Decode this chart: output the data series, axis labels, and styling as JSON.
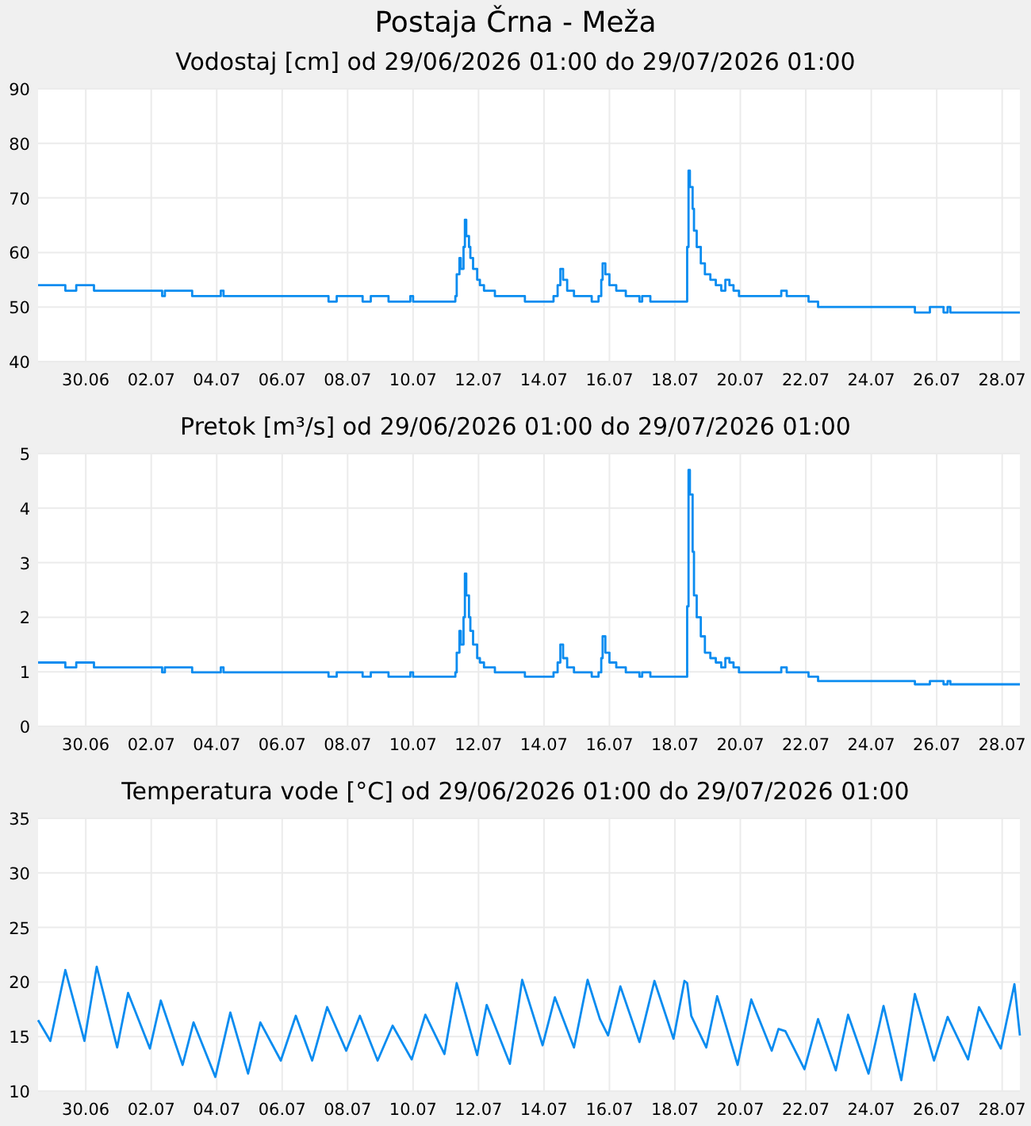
{
  "chart_data": [
    {
      "type": "step",
      "title": "Postaja Črna - Meža",
      "subtitle": "Vodostaj [cm] od 29/06/2026 01:00 do 29/07/2026 01:00",
      "grid": true,
      "xlim": [
        "2026-06-29T01:00",
        "2026-07-29T01:00"
      ],
      "ylim": [
        40,
        90
      ],
      "yticks": [
        40,
        50,
        60,
        70,
        80,
        90
      ],
      "xticks": [
        {
          "value": "2026-06-30T12:00",
          "label": "30.06"
        },
        {
          "value": "2026-07-02T12:00",
          "label": "02.07"
        },
        {
          "value": "2026-07-04T12:00",
          "label": "04.07"
        },
        {
          "value": "2026-07-06T12:00",
          "label": "06.07"
        },
        {
          "value": "2026-07-08T12:00",
          "label": "08.07"
        },
        {
          "value": "2026-07-10T12:00",
          "label": "10.07"
        },
        {
          "value": "2026-07-12T12:00",
          "label": "12.07"
        },
        {
          "value": "2026-07-14T12:00",
          "label": "14.07"
        },
        {
          "value": "2026-07-16T12:00",
          "label": "16.07"
        },
        {
          "value": "2026-07-18T12:00",
          "label": "18.07"
        },
        {
          "value": "2026-07-20T12:00",
          "label": "20.07"
        },
        {
          "value": "2026-07-22T12:00",
          "label": "22.07"
        },
        {
          "value": "2026-07-24T12:00",
          "label": "24.07"
        },
        {
          "value": "2026-07-26T12:00",
          "label": "26.07"
        },
        {
          "value": "2026-07-28T12:00",
          "label": "28.07"
        }
      ],
      "x": [
        "2026-06-29T01:00",
        "2026-06-29T21:00",
        "2026-06-30T05:00",
        "2026-06-30T18:00",
        "2026-07-02T20:00",
        "2026-07-02T22:00",
        "2026-07-03T18:00",
        "2026-07-04T15:00",
        "2026-07-04T17:00",
        "2026-07-07T22:00",
        "2026-07-08T04:00",
        "2026-07-08T23:00",
        "2026-07-09T05:00",
        "2026-07-09T18:00",
        "2026-07-10T10:00",
        "2026-07-10T12:00",
        "2026-07-11T19:00",
        "2026-07-11T20:00",
        "2026-07-11T22:00",
        "2026-07-11T23:00",
        "2026-07-12T01:00",
        "2026-07-12T02:00",
        "2026-07-12T03:00",
        "2026-07-12T05:00",
        "2026-07-12T06:00",
        "2026-07-12T08:00",
        "2026-07-12T11:00",
        "2026-07-12T13:00",
        "2026-07-12T16:00",
        "2026-07-13T00:00",
        "2026-07-13T22:00",
        "2026-07-14T19:00",
        "2026-07-14T22:00",
        "2026-07-15T00:00",
        "2026-07-15T02:00",
        "2026-07-15T05:00",
        "2026-07-15T10:00",
        "2026-07-15T23:00",
        "2026-07-16T04:00",
        "2026-07-16T06:00",
        "2026-07-16T07:00",
        "2026-07-16T09:00",
        "2026-07-16T12:00",
        "2026-07-16T17:00",
        "2026-07-17T00:00",
        "2026-07-17T10:00",
        "2026-07-17T12:00",
        "2026-07-17T18:00",
        "2026-07-18T21:00",
        "2026-07-18T22:00",
        "2026-07-18T23:00",
        "2026-07-19T01:00",
        "2026-07-19T02:00",
        "2026-07-19T04:00",
        "2026-07-19T07:00",
        "2026-07-19T10:00",
        "2026-07-19T14:00",
        "2026-07-19T18:00",
        "2026-07-19T22:00",
        "2026-07-20T01:00",
        "2026-07-20T04:00",
        "2026-07-20T07:00",
        "2026-07-20T11:00",
        "2026-07-21T18:00",
        "2026-07-21T22:00",
        "2026-07-22T14:00",
        "2026-07-22T21:00",
        "2026-07-25T20:00",
        "2026-07-26T07:00",
        "2026-07-26T17:00",
        "2026-07-26T20:00",
        "2026-07-26T22:00",
        "2026-07-29T01:00"
      ],
      "series": [
        {
          "color": "#0a8cf0",
          "values": [
            54,
            53,
            54,
            53,
            52,
            53,
            52,
            53,
            52,
            51,
            52,
            51,
            52,
            51,
            52,
            51,
            52,
            56,
            59,
            57,
            61,
            66,
            63,
            61,
            59,
            57,
            55,
            54,
            53,
            52,
            51,
            52,
            54,
            57,
            55,
            53,
            52,
            51,
            52,
            55,
            58,
            56,
            54,
            53,
            52,
            51,
            52,
            51,
            61,
            75,
            72,
            68,
            64,
            61,
            58,
            56,
            55,
            54,
            53,
            55,
            54,
            53,
            52,
            53,
            52,
            51,
            50,
            49,
            50,
            49,
            50,
            49,
            49
          ]
        }
      ]
    },
    {
      "type": "step",
      "title": "Pretok [m³/s] od 29/06/2026 01:00 do 29/07/2026 01:00",
      "grid": true,
      "xlim": [
        "2026-06-29T01:00",
        "2026-07-29T01:00"
      ],
      "ylim": [
        0,
        5
      ],
      "yticks": [
        0,
        1,
        2,
        3,
        4,
        5
      ],
      "xticks": [
        {
          "value": "2026-06-30T12:00",
          "label": "30.06"
        },
        {
          "value": "2026-07-02T12:00",
          "label": "02.07"
        },
        {
          "value": "2026-07-04T12:00",
          "label": "04.07"
        },
        {
          "value": "2026-07-06T12:00",
          "label": "06.07"
        },
        {
          "value": "2026-07-08T12:00",
          "label": "08.07"
        },
        {
          "value": "2026-07-10T12:00",
          "label": "10.07"
        },
        {
          "value": "2026-07-12T12:00",
          "label": "12.07"
        },
        {
          "value": "2026-07-14T12:00",
          "label": "14.07"
        },
        {
          "value": "2026-07-16T12:00",
          "label": "16.07"
        },
        {
          "value": "2026-07-18T12:00",
          "label": "18.07"
        },
        {
          "value": "2026-07-20T12:00",
          "label": "20.07"
        },
        {
          "value": "2026-07-22T12:00",
          "label": "22.07"
        },
        {
          "value": "2026-07-24T12:00",
          "label": "24.07"
        },
        {
          "value": "2026-07-26T12:00",
          "label": "26.07"
        },
        {
          "value": "2026-07-28T12:00",
          "label": "28.07"
        }
      ],
      "x": [
        "2026-06-29T01:00",
        "2026-06-29T21:00",
        "2026-06-30T05:00",
        "2026-06-30T18:00",
        "2026-07-02T20:00",
        "2026-07-02T22:00",
        "2026-07-03T18:00",
        "2026-07-04T15:00",
        "2026-07-04T17:00",
        "2026-07-07T22:00",
        "2026-07-08T04:00",
        "2026-07-08T23:00",
        "2026-07-09T05:00",
        "2026-07-09T18:00",
        "2026-07-10T10:00",
        "2026-07-10T12:00",
        "2026-07-11T19:00",
        "2026-07-11T20:00",
        "2026-07-11T22:00",
        "2026-07-11T23:00",
        "2026-07-12T01:00",
        "2026-07-12T02:00",
        "2026-07-12T03:00",
        "2026-07-12T05:00",
        "2026-07-12T06:00",
        "2026-07-12T08:00",
        "2026-07-12T11:00",
        "2026-07-12T13:00",
        "2026-07-12T16:00",
        "2026-07-13T00:00",
        "2026-07-13T22:00",
        "2026-07-14T19:00",
        "2026-07-14T22:00",
        "2026-07-15T00:00",
        "2026-07-15T02:00",
        "2026-07-15T05:00",
        "2026-07-15T10:00",
        "2026-07-15T23:00",
        "2026-07-16T04:00",
        "2026-07-16T06:00",
        "2026-07-16T07:00",
        "2026-07-16T09:00",
        "2026-07-16T12:00",
        "2026-07-16T17:00",
        "2026-07-17T00:00",
        "2026-07-17T10:00",
        "2026-07-17T12:00",
        "2026-07-17T18:00",
        "2026-07-18T21:00",
        "2026-07-18T22:00",
        "2026-07-18T23:00",
        "2026-07-19T01:00",
        "2026-07-19T02:00",
        "2026-07-19T04:00",
        "2026-07-19T07:00",
        "2026-07-19T10:00",
        "2026-07-19T14:00",
        "2026-07-19T18:00",
        "2026-07-19T22:00",
        "2026-07-20T01:00",
        "2026-07-20T04:00",
        "2026-07-20T07:00",
        "2026-07-20T11:00",
        "2026-07-21T18:00",
        "2026-07-21T22:00",
        "2026-07-22T14:00",
        "2026-07-22T21:00",
        "2026-07-25T20:00",
        "2026-07-26T07:00",
        "2026-07-26T17:00",
        "2026-07-26T20:00",
        "2026-07-26T22:00",
        "2026-07-29T01:00"
      ],
      "series": [
        {
          "color": "#0a8cf0",
          "values": [
            1.17,
            1.08,
            1.17,
            1.08,
            0.99,
            1.08,
            0.99,
            1.08,
            0.99,
            0.91,
            0.99,
            0.91,
            0.99,
            0.91,
            0.99,
            0.91,
            0.99,
            1.35,
            1.75,
            1.5,
            2.0,
            2.8,
            2.4,
            2.0,
            1.75,
            1.5,
            1.25,
            1.17,
            1.08,
            0.99,
            0.91,
            0.99,
            1.17,
            1.5,
            1.25,
            1.08,
            0.99,
            0.91,
            0.99,
            1.25,
            1.65,
            1.35,
            1.17,
            1.08,
            0.99,
            0.91,
            0.99,
            0.91,
            2.2,
            4.7,
            4.25,
            3.2,
            2.4,
            2.0,
            1.65,
            1.35,
            1.25,
            1.17,
            1.08,
            1.25,
            1.17,
            1.08,
            0.99,
            1.08,
            0.99,
            0.91,
            0.83,
            0.77,
            0.83,
            0.77,
            0.83,
            0.77,
            0.77
          ]
        }
      ]
    },
    {
      "type": "line",
      "title": "Temperatura vode [°C] od 29/06/2026 01:00 do 29/07/2026 01:00",
      "grid": true,
      "xlim": [
        "2026-06-29T01:00",
        "2026-07-29T01:00"
      ],
      "ylim": [
        10,
        35
      ],
      "yticks": [
        10,
        15,
        20,
        25,
        30,
        35
      ],
      "xticks": [
        {
          "value": "2026-06-30T12:00",
          "label": "30.06"
        },
        {
          "value": "2026-07-02T12:00",
          "label": "02.07"
        },
        {
          "value": "2026-07-04T12:00",
          "label": "04.07"
        },
        {
          "value": "2026-07-06T12:00",
          "label": "06.07"
        },
        {
          "value": "2026-07-08T12:00",
          "label": "08.07"
        },
        {
          "value": "2026-07-10T12:00",
          "label": "10.07"
        },
        {
          "value": "2026-07-12T12:00",
          "label": "12.07"
        },
        {
          "value": "2026-07-14T12:00",
          "label": "14.07"
        },
        {
          "value": "2026-07-16T12:00",
          "label": "16.07"
        },
        {
          "value": "2026-07-18T12:00",
          "label": "18.07"
        },
        {
          "value": "2026-07-20T12:00",
          "label": "20.07"
        },
        {
          "value": "2026-07-22T12:00",
          "label": "22.07"
        },
        {
          "value": "2026-07-24T12:00",
          "label": "24.07"
        },
        {
          "value": "2026-07-26T12:00",
          "label": "26.07"
        },
        {
          "value": "2026-07-28T12:00",
          "label": "28.07"
        }
      ],
      "x": [
        "2026-06-29T01:00",
        "2026-06-29T10:00",
        "2026-06-29T21:00",
        "2026-06-30T11:00",
        "2026-06-30T20:00",
        "2026-07-01T11:00",
        "2026-07-01T19:00",
        "2026-07-02T11:00",
        "2026-07-02T19:00",
        "2026-07-03T11:00",
        "2026-07-03T19:00",
        "2026-07-04T11:00",
        "2026-07-04T22:00",
        "2026-07-05T11:00",
        "2026-07-05T20:00",
        "2026-07-06T11:00",
        "2026-07-06T22:00",
        "2026-07-07T10:00",
        "2026-07-07T21:00",
        "2026-07-08T11:00",
        "2026-07-08T21:00",
        "2026-07-09T10:00",
        "2026-07-09T21:00",
        "2026-07-10T11:00",
        "2026-07-10T21:00",
        "2026-07-11T11:00",
        "2026-07-11T20:00",
        "2026-07-12T11:00",
        "2026-07-12T18:00",
        "2026-07-13T11:00",
        "2026-07-13T20:00",
        "2026-07-14T11:00",
        "2026-07-14T20:00",
        "2026-07-15T10:00",
        "2026-07-15T20:00",
        "2026-07-16T05:00",
        "2026-07-16T11:00",
        "2026-07-16T20:00",
        "2026-07-17T10:00",
        "2026-07-17T21:00",
        "2026-07-18T11:00",
        "2026-07-18T19:00",
        "2026-07-18T21:00",
        "2026-07-19T00:00",
        "2026-07-19T11:00",
        "2026-07-19T19:00",
        "2026-07-20T10:00",
        "2026-07-20T20:00",
        "2026-07-21T11:00",
        "2026-07-21T16:00",
        "2026-07-21T21:00",
        "2026-07-22T11:00",
        "2026-07-22T21:00",
        "2026-07-23T10:00",
        "2026-07-23T19:00",
        "2026-07-24T10:00",
        "2026-07-24T21:00",
        "2026-07-25T10:00",
        "2026-07-25T20:00",
        "2026-07-26T10:00",
        "2026-07-26T20:00",
        "2026-07-27T11:00",
        "2026-07-27T19:00",
        "2026-07-28T11:00",
        "2026-07-28T21:00",
        "2026-07-29T01:00"
      ],
      "series": [
        {
          "color": "#0a8cf0",
          "values": [
            16.5,
            14.6,
            21.1,
            14.6,
            21.4,
            14.0,
            19.0,
            13.9,
            18.3,
            12.4,
            16.3,
            11.3,
            17.2,
            11.6,
            16.3,
            12.8,
            16.9,
            12.8,
            17.7,
            13.7,
            16.9,
            12.8,
            16.0,
            12.9,
            17.0,
            13.4,
            19.9,
            13.3,
            17.9,
            12.5,
            20.2,
            14.2,
            18.6,
            14.0,
            20.2,
            16.6,
            15.1,
            19.6,
            14.5,
            20.1,
            14.8,
            20.1,
            19.9,
            16.9,
            14.0,
            18.7,
            12.4,
            18.4,
            13.7,
            15.7,
            15.5,
            12.0,
            16.6,
            11.9,
            17.0,
            11.6,
            17.8,
            11.0,
            18.9,
            12.8,
            16.8,
            12.9,
            17.7,
            13.9,
            19.8,
            15.1
          ]
        }
      ]
    }
  ]
}
